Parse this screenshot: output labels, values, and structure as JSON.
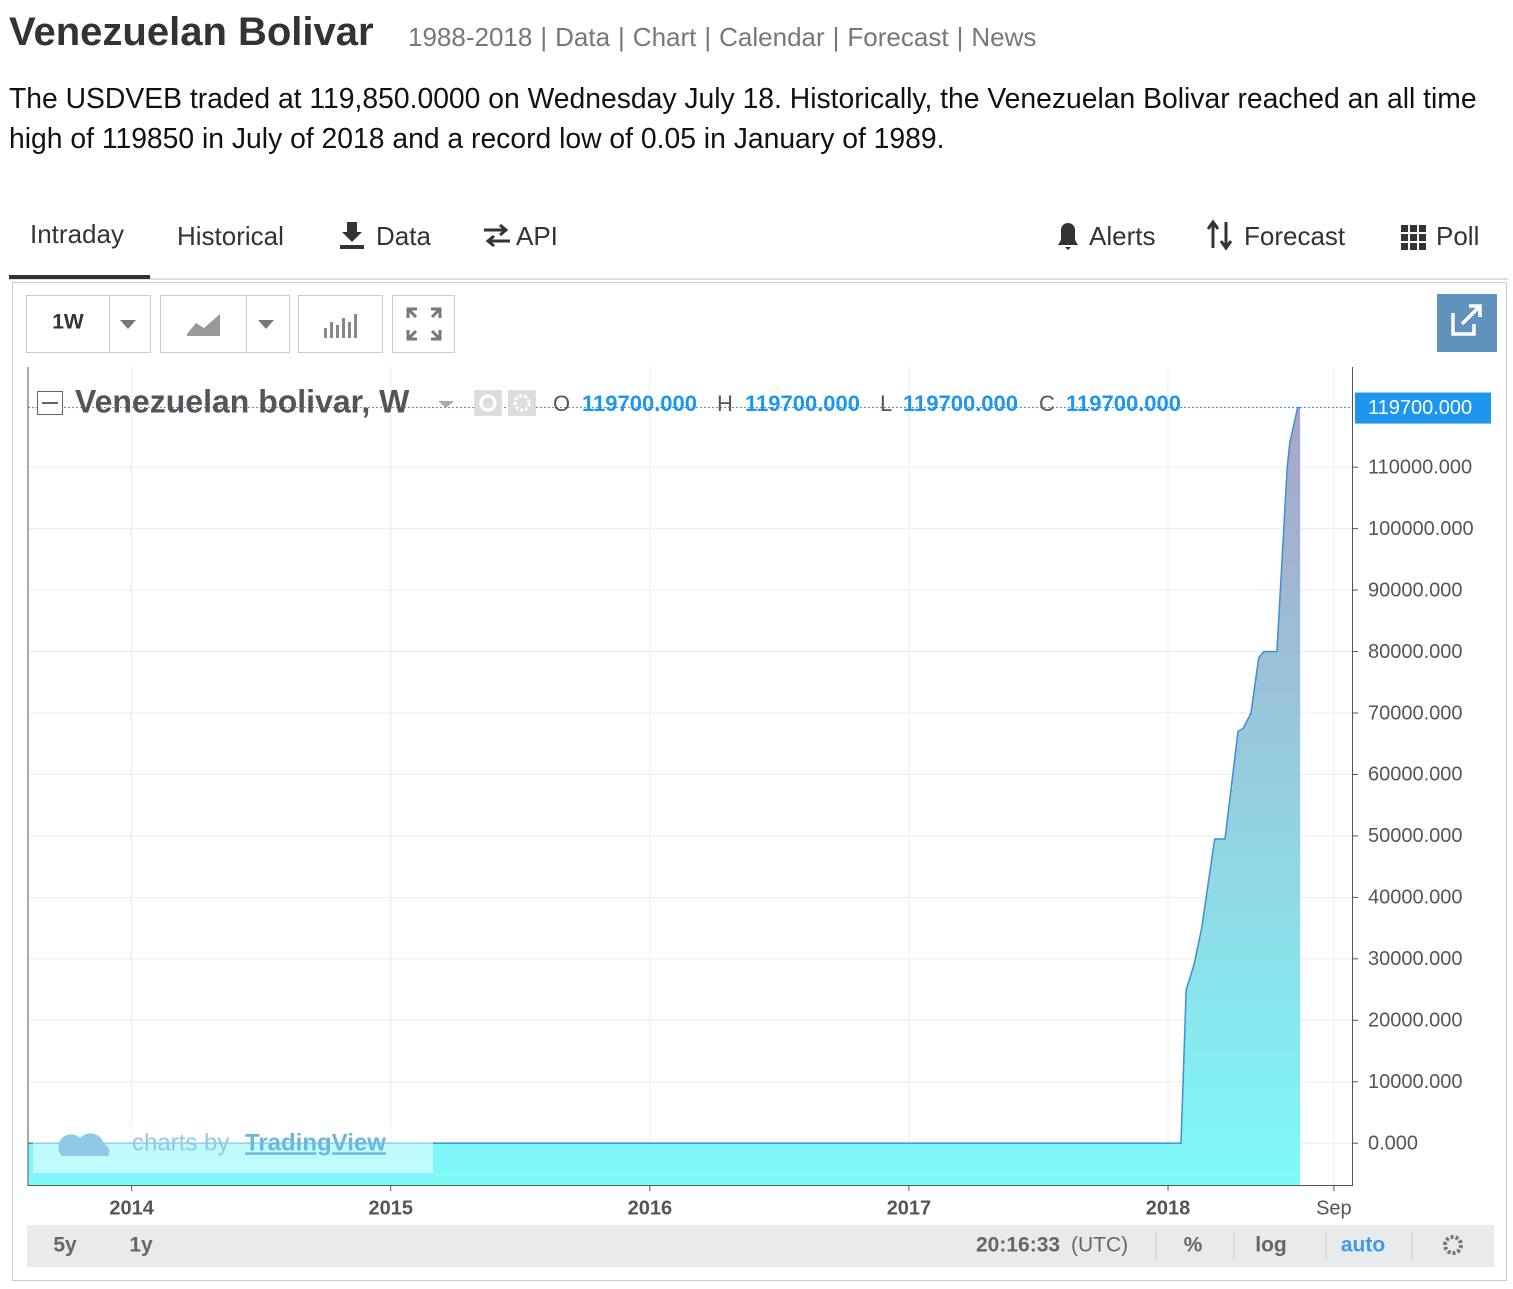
{
  "header": {
    "title": "Venezuelan Bolivar",
    "links": [
      "1988-2018",
      "Data",
      "Chart",
      "Calendar",
      "Forecast",
      "News"
    ]
  },
  "summary": "The USDVEB traded at 119,850.0000 on Wednesday July 18. Historically, the Venezuelan Bolivar reached an all time high of 119850 in July of 2018 and a record low of 0.05 in January of 1989.",
  "tabs": {
    "left": [
      "Intraday",
      "Historical",
      "Data",
      "API"
    ],
    "right": [
      "Alerts",
      "Forecast",
      "Poll"
    ]
  },
  "toolbar": {
    "interval": "1W"
  },
  "footer": {
    "ranges": [
      "5y",
      "1y"
    ],
    "time": "20:16:33",
    "zone": "(UTC)",
    "options": [
      "%",
      "log",
      "auto"
    ]
  },
  "watermark": {
    "prefix": "charts by",
    "brand": "TradingView"
  },
  "chart_data": {
    "type": "area",
    "title": "Venezuelan bolivar, W",
    "ohlc": {
      "names": [
        "O",
        "H",
        "L",
        "C"
      ],
      "values": [
        119700,
        119700,
        119700,
        119700
      ],
      "value_labels": [
        "119700.000",
        "119700.000",
        "119700.000",
        "119700.000"
      ]
    },
    "last_value": 119700,
    "last_value_label": "119700.000",
    "x": [
      2013.6,
      2016.2,
      2017.0,
      2018.05,
      2018.07,
      2018.1,
      2018.13,
      2018.18,
      2018.22,
      2018.25,
      2018.27,
      2018.29,
      2018.32,
      2018.35,
      2018.37,
      2018.42,
      2018.46,
      2018.47,
      2018.5,
      2018.51
    ],
    "values": [
      6.3,
      10,
      10,
      10,
      25000,
      29000,
      35000,
      49500,
      49500,
      60000,
      67000,
      67500,
      70000,
      79000,
      80000,
      80000,
      110000,
      114000,
      119700,
      119700
    ],
    "line_color": "#3d8fd6",
    "fill_top": "#a9a4c8",
    "fill_bottom": "#7ffaf9",
    "xlim": [
      2013.6,
      2018.71
    ],
    "xticks": [
      2014,
      2015,
      2016,
      2017,
      2018,
      {
        "value": 2018.64,
        "label": "Sep"
      }
    ],
    "ylim": [
      -6800,
      126300
    ],
    "yticks": [
      {
        "value": 0,
        "label": "0.000"
      },
      {
        "value": 10000,
        "label": "10000.000"
      },
      {
        "value": 20000,
        "label": "20000.000"
      },
      {
        "value": 30000,
        "label": "30000.000"
      },
      {
        "value": 40000,
        "label": "40000.000"
      },
      {
        "value": 50000,
        "label": "50000.000"
      },
      {
        "value": 60000,
        "label": "60000.000"
      },
      {
        "value": 70000,
        "label": "70000.000"
      },
      {
        "value": 80000,
        "label": "80000.000"
      },
      {
        "value": 90000,
        "label": "90000.000"
      },
      {
        "value": 100000,
        "label": "100000.000"
      },
      {
        "value": 110000,
        "label": "110000.000"
      }
    ],
    "grid": true
  }
}
